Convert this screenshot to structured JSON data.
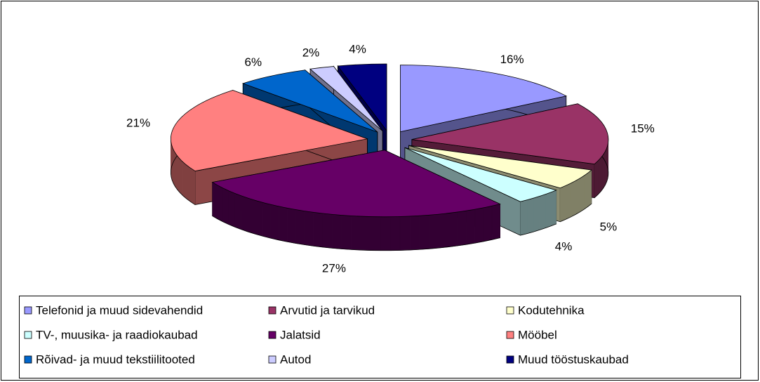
{
  "chart_data": {
    "type": "pie",
    "categories": [
      "Telefonid ja muud sidevahendid",
      "Arvutid ja tarvikud",
      "Kodutehnika",
      "TV-, muusika- ja raadiokaubad",
      "Jalatsid",
      "Mööbel",
      "Rõivad- ja muud tekstiilitooted",
      "Autod",
      "Muud tööstuskaubad"
    ],
    "values": [
      16,
      15,
      5,
      4,
      27,
      21,
      6,
      2,
      4
    ],
    "value_labels": [
      "16%",
      "15%",
      "5%",
      "4%",
      "27%",
      "21%",
      "6%",
      "2%",
      "4%"
    ],
    "colors": [
      "#9999ff",
      "#993366",
      "#ffffcc",
      "#ccffff",
      "#660066",
      "#ff8080",
      "#0066cc",
      "#ccccff",
      "#000080"
    ],
    "legend": "bottom"
  }
}
